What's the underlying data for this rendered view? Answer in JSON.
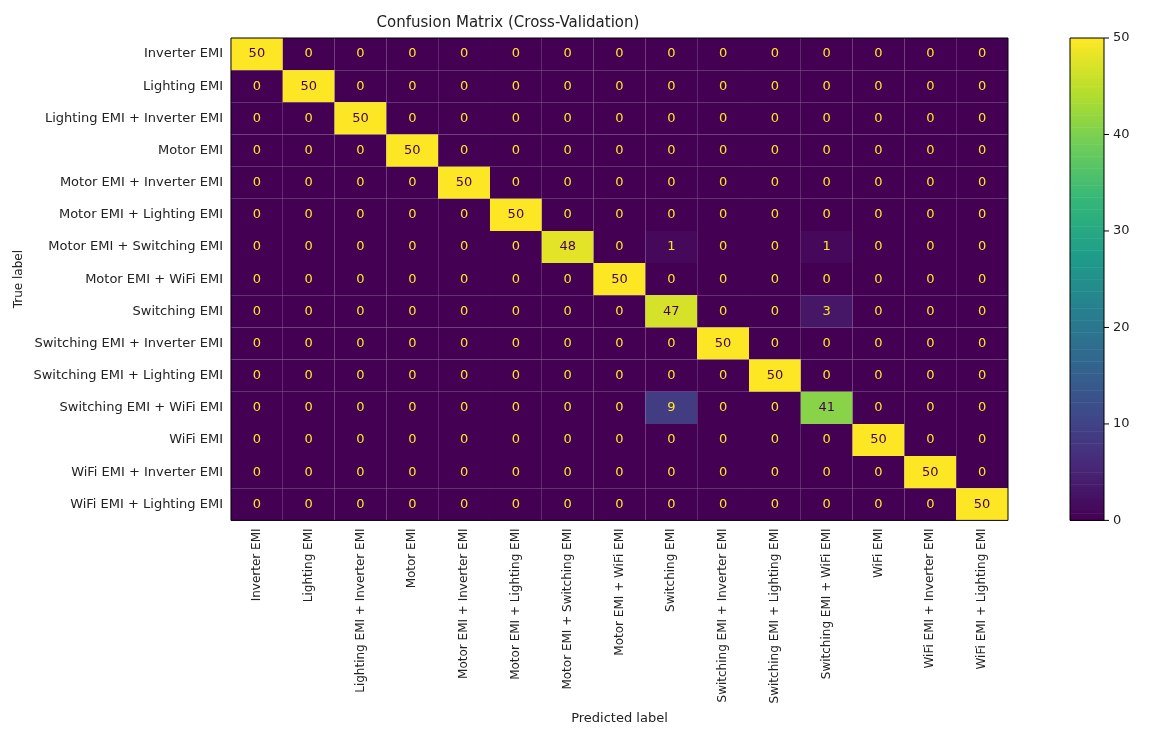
{
  "chart_data": {
    "type": "heatmap",
    "title": "Confusion Matrix (Cross-Validation)",
    "xlabel": "Predicted label",
    "ylabel": "True label",
    "categories": [
      "Inverter EMI",
      "Lighting EMI",
      "Lighting EMI + Inverter EMI",
      "Motor EMI",
      "Motor EMI + Inverter EMI",
      "Motor EMI + Lighting EMI",
      "Motor EMI + Switching EMI",
      "Motor EMI + WiFi EMI",
      "Switching EMI",
      "Switching EMI + Inverter EMI",
      "Switching EMI + Lighting EMI",
      "Switching EMI + WiFi EMI",
      "WiFi EMI",
      "WiFi EMI + Inverter EMI",
      "WiFi EMI + Lighting EMI"
    ],
    "y_categories": [
      "Inverter EMI",
      "Lighting EMI",
      "Lighting EMI + Inverter EMI",
      "Motor EMI",
      "Motor EMI + Inverter EMI",
      "Motor EMI + Lighting EMI",
      "Motor EMI + Switching EMI",
      "Motor EMI + WiFi EMI",
      "Switching EMI",
      "Switching EMI + Inverter EMI",
      "Switching EMI + Lighting EMI",
      "Switching EMI + WiFi EMI",
      "WiFi EMI",
      "WiFi EMI + Inverter EMI",
      "WiFi EMI + Lighting EMI"
    ],
    "cells": [
      [
        50,
        0,
        0,
        0,
        0,
        0,
        0,
        0,
        0,
        0,
        0,
        0,
        0,
        0,
        0
      ],
      [
        0,
        50,
        0,
        0,
        0,
        0,
        0,
        0,
        0,
        0,
        0,
        0,
        0,
        0,
        0
      ],
      [
        0,
        0,
        50,
        0,
        0,
        0,
        0,
        0,
        0,
        0,
        0,
        0,
        0,
        0,
        0
      ],
      [
        0,
        0,
        0,
        50,
        0,
        0,
        0,
        0,
        0,
        0,
        0,
        0,
        0,
        0,
        0
      ],
      [
        0,
        0,
        0,
        0,
        50,
        0,
        0,
        0,
        0,
        0,
        0,
        0,
        0,
        0,
        0
      ],
      [
        0,
        0,
        0,
        0,
        0,
        50,
        0,
        0,
        0,
        0,
        0,
        0,
        0,
        0,
        0
      ],
      [
        0,
        0,
        0,
        0,
        0,
        0,
        48,
        0,
        1,
        0,
        0,
        1,
        0,
        0,
        0
      ],
      [
        0,
        0,
        0,
        0,
        0,
        0,
        0,
        50,
        0,
        0,
        0,
        0,
        0,
        0,
        0
      ],
      [
        0,
        0,
        0,
        0,
        0,
        0,
        0,
        0,
        47,
        0,
        0,
        3,
        0,
        0,
        0
      ],
      [
        0,
        0,
        0,
        0,
        0,
        0,
        0,
        0,
        0,
        50,
        0,
        0,
        0,
        0,
        0
      ],
      [
        0,
        0,
        0,
        0,
        0,
        0,
        0,
        0,
        0,
        0,
        50,
        0,
        0,
        0,
        0
      ],
      [
        0,
        0,
        0,
        0,
        0,
        0,
        0,
        0,
        9,
        0,
        0,
        41,
        0,
        0,
        0
      ],
      [
        0,
        0,
        0,
        0,
        0,
        0,
        0,
        0,
        0,
        0,
        0,
        0,
        50,
        0,
        0
      ],
      [
        0,
        0,
        0,
        0,
        0,
        0,
        0,
        0,
        0,
        0,
        0,
        0,
        0,
        50,
        0
      ],
      [
        0,
        0,
        0,
        0,
        0,
        0,
        0,
        0,
        0,
        0,
        0,
        0,
        0,
        0,
        50
      ]
    ],
    "clim": [
      0,
      50
    ],
    "cticks": [
      0,
      10,
      20,
      30,
      40,
      50
    ],
    "data_labels": true
  }
}
